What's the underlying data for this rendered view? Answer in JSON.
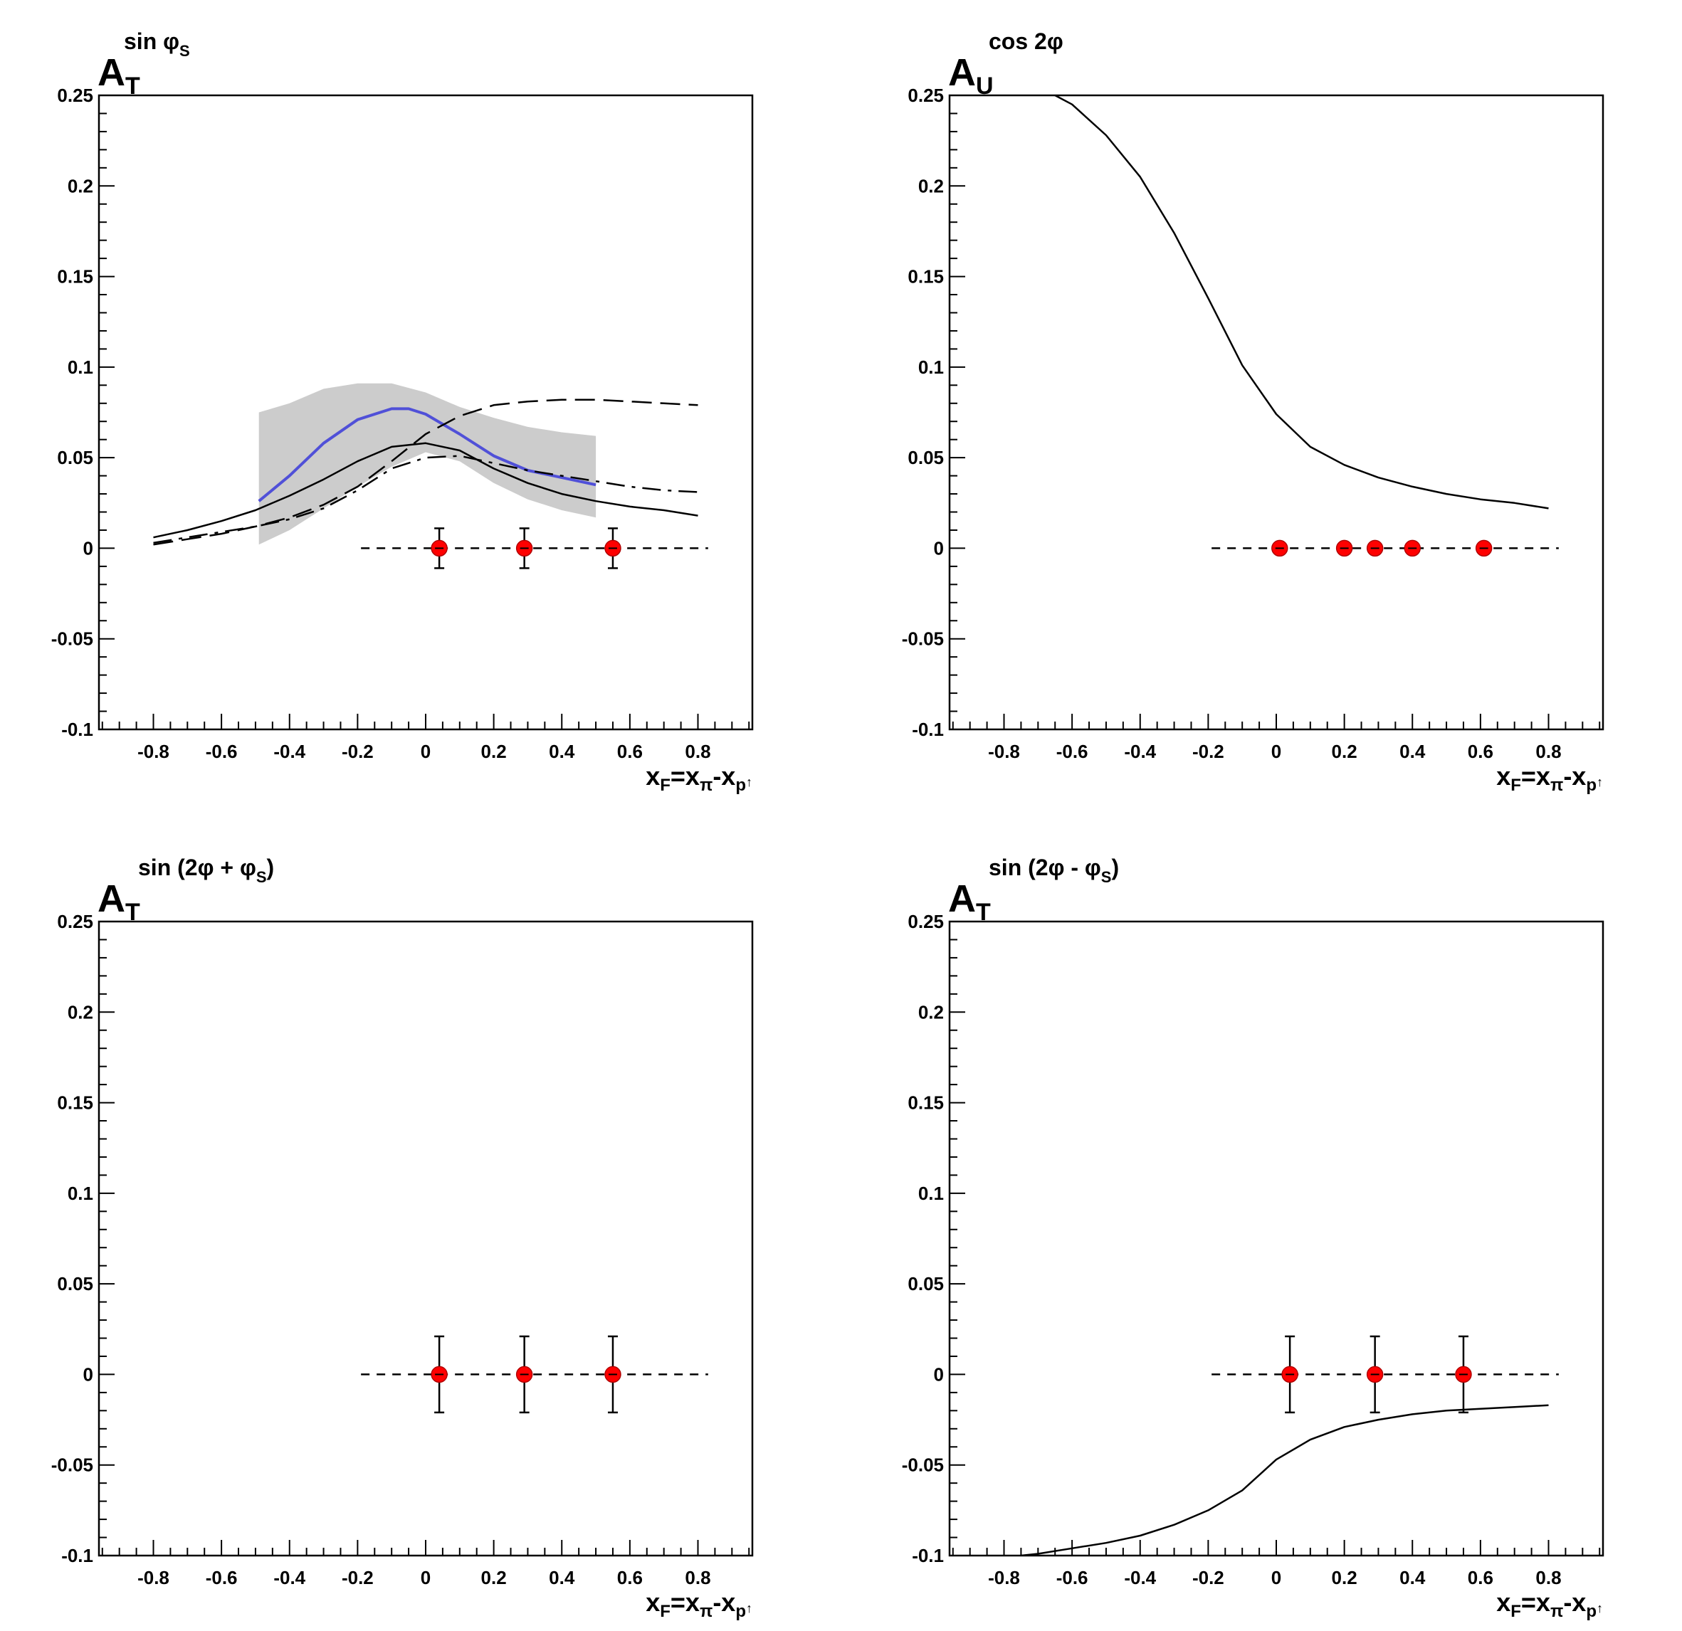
{
  "chart_data": [
    {
      "type": "line",
      "title": "A_T^{sin φ_S}",
      "title_parts": {
        "main": "A",
        "sub": "T",
        "sup": "sin φ",
        "sup_sub": "S",
        "sup_tail": ""
      },
      "xlabel": "x_F=x_π-x_p↑",
      "xlim": [
        -0.96,
        0.96
      ],
      "ylim": [
        -0.1,
        0.25
      ],
      "xticks": [
        "-0.8",
        "-0.6",
        "-0.4",
        "-0.2",
        "0",
        "0.2",
        "0.4",
        "0.6",
        "0.8"
      ],
      "yticks": [
        "-0.1",
        "-0.05",
        "0",
        "0.05",
        "0.1",
        "0.15",
        "0.2",
        "0.25"
      ],
      "band": {
        "x": [
          -0.49,
          -0.4,
          -0.3,
          -0.2,
          -0.1,
          0.0,
          0.1,
          0.2,
          0.3,
          0.4,
          0.5
        ],
        "upper": [
          0.075,
          0.08,
          0.088,
          0.091,
          0.091,
          0.086,
          0.078,
          0.072,
          0.067,
          0.064,
          0.062
        ],
        "lower": [
          0.002,
          0.01,
          0.022,
          0.034,
          0.045,
          0.053,
          0.048,
          0.036,
          0.027,
          0.021,
          0.017
        ],
        "color": "#cccccc"
      },
      "series": [
        {
          "style": "solid",
          "color": "#5050d8",
          "width": 4,
          "x": [
            -0.49,
            -0.4,
            -0.3,
            -0.2,
            -0.1,
            -0.05,
            0.0,
            0.1,
            0.2,
            0.3,
            0.4,
            0.5
          ],
          "y": [
            0.026,
            0.04,
            0.058,
            0.071,
            0.077,
            0.077,
            0.074,
            0.063,
            0.051,
            0.043,
            0.039,
            0.035
          ]
        },
        {
          "style": "solid",
          "color": "#000000",
          "width": 2.5,
          "x": [
            -0.8,
            -0.7,
            -0.6,
            -0.5,
            -0.4,
            -0.3,
            -0.2,
            -0.1,
            0.0,
            0.1,
            0.2,
            0.3,
            0.4,
            0.5,
            0.6,
            0.7,
            0.8
          ],
          "y": [
            0.006,
            0.01,
            0.015,
            0.021,
            0.029,
            0.038,
            0.048,
            0.056,
            0.058,
            0.054,
            0.044,
            0.036,
            0.03,
            0.026,
            0.023,
            0.021,
            0.018
          ]
        },
        {
          "style": "longdash",
          "color": "#000000",
          "width": 2.5,
          "x": [
            -0.8,
            -0.7,
            -0.6,
            -0.5,
            -0.4,
            -0.3,
            -0.2,
            -0.1,
            0.0,
            0.1,
            0.2,
            0.3,
            0.4,
            0.5,
            0.6,
            0.7,
            0.8
          ],
          "y": [
            0.002,
            0.005,
            0.008,
            0.012,
            0.017,
            0.024,
            0.034,
            0.048,
            0.063,
            0.073,
            0.079,
            0.081,
            0.082,
            0.082,
            0.081,
            0.08,
            0.079
          ]
        },
        {
          "style": "dashdot",
          "color": "#000000",
          "width": 2.5,
          "x": [
            -0.8,
            -0.7,
            -0.6,
            -0.5,
            -0.4,
            -0.3,
            -0.2,
            -0.1,
            0.0,
            0.1,
            0.2,
            0.3,
            0.4,
            0.5,
            0.6,
            0.7,
            0.8
          ],
          "y": [
            0.003,
            0.006,
            0.009,
            0.012,
            0.016,
            0.022,
            0.032,
            0.044,
            0.05,
            0.051,
            0.047,
            0.043,
            0.04,
            0.037,
            0.034,
            0.032,
            0.031
          ]
        }
      ],
      "reference_line": {
        "y": 0,
        "x": [
          -0.19,
          0.83
        ]
      },
      "points": {
        "x": [
          0.04,
          0.29,
          0.55
        ],
        "y": [
          0,
          0,
          0
        ],
        "err": [
          0.011,
          0.011,
          0.011
        ],
        "color": "#ff0000"
      }
    },
    {
      "type": "line",
      "title": "A_U^{cos 2φ}",
      "title_parts": {
        "main": "A",
        "sub": "U",
        "sup": "cos 2φ",
        "sup_sub": "",
        "sup_tail": ""
      },
      "xlabel": "x_F=x_π-x_p↑",
      "xlim": [
        -0.96,
        0.96
      ],
      "ylim": [
        -0.1,
        0.25
      ],
      "xticks": [
        "-0.8",
        "-0.6",
        "-0.4",
        "-0.2",
        "0",
        "0.2",
        "0.4",
        "0.6",
        "0.8"
      ],
      "yticks": [
        "-0.1",
        "-0.05",
        "0",
        "0.05",
        "0.1",
        "0.15",
        "0.2",
        "0.25"
      ],
      "series": [
        {
          "style": "solid",
          "color": "#000000",
          "width": 2.5,
          "x": [
            -0.65,
            -0.6,
            -0.5,
            -0.4,
            -0.3,
            -0.2,
            -0.1,
            0.0,
            0.1,
            0.2,
            0.3,
            0.4,
            0.5,
            0.6,
            0.7,
            0.8
          ],
          "y": [
            0.25,
            0.245,
            0.228,
            0.205,
            0.174,
            0.138,
            0.101,
            0.074,
            0.056,
            0.046,
            0.039,
            0.034,
            0.03,
            0.027,
            0.025,
            0.022
          ]
        }
      ],
      "reference_line": {
        "y": 0,
        "x": [
          -0.19,
          0.83
        ]
      },
      "points": {
        "x": [
          0.01,
          0.2,
          0.29,
          0.4,
          0.61
        ],
        "y": [
          0,
          0,
          0,
          0,
          0
        ],
        "err": [
          0,
          0,
          0,
          0,
          0
        ],
        "color": "#ff0000"
      }
    },
    {
      "type": "scatter",
      "title": "A_T^{sin (2φ + φ_S)}",
      "title_parts": {
        "main": "A",
        "sub": "T",
        "sup": "sin (2φ + φ",
        "sup_sub": "S",
        "sup_tail": ")"
      },
      "xlabel": "x_F=x_π-x_p↑",
      "xlim": [
        -0.96,
        0.96
      ],
      "ylim": [
        -0.1,
        0.25
      ],
      "xticks": [
        "-0.8",
        "-0.6",
        "-0.4",
        "-0.2",
        "0",
        "0.2",
        "0.4",
        "0.6",
        "0.8"
      ],
      "yticks": [
        "-0.1",
        "-0.05",
        "0",
        "0.05",
        "0.1",
        "0.15",
        "0.2",
        "0.25"
      ],
      "series": [],
      "reference_line": {
        "y": 0,
        "x": [
          -0.19,
          0.83
        ]
      },
      "points": {
        "x": [
          0.04,
          0.29,
          0.55
        ],
        "y": [
          0,
          0,
          0
        ],
        "err": [
          0.021,
          0.021,
          0.021
        ],
        "color": "#ff0000"
      }
    },
    {
      "type": "line",
      "title": "A_T^{sin (2φ - φ_S)}",
      "title_parts": {
        "main": "A",
        "sub": "T",
        "sup": "sin (2φ - φ",
        "sup_sub": "S",
        "sup_tail": ")"
      },
      "xlabel": "x_F=x_π-x_p↑",
      "xlim": [
        -0.96,
        0.96
      ],
      "ylim": [
        -0.1,
        0.25
      ],
      "xticks": [
        "-0.8",
        "-0.6",
        "-0.4",
        "-0.2",
        "0",
        "0.2",
        "0.4",
        "0.6",
        "0.8"
      ],
      "yticks": [
        "-0.1",
        "-0.05",
        "0",
        "0.05",
        "0.1",
        "0.15",
        "0.2",
        "0.25"
      ],
      "series": [
        {
          "style": "solid",
          "color": "#000000",
          "width": 2.5,
          "x": [
            -0.75,
            -0.7,
            -0.6,
            -0.5,
            -0.4,
            -0.3,
            -0.2,
            -0.1,
            0.0,
            0.1,
            0.2,
            0.3,
            0.4,
            0.5,
            0.6,
            0.7,
            0.8
          ],
          "y": [
            -0.1,
            -0.099,
            -0.096,
            -0.093,
            -0.089,
            -0.083,
            -0.075,
            -0.064,
            -0.047,
            -0.036,
            -0.029,
            -0.025,
            -0.022,
            -0.02,
            -0.019,
            -0.018,
            -0.017
          ]
        }
      ],
      "reference_line": {
        "y": 0,
        "x": [
          -0.19,
          0.83
        ]
      },
      "points": {
        "x": [
          0.04,
          0.29,
          0.55
        ],
        "y": [
          0,
          0,
          0
        ],
        "err": [
          0.021,
          0.021,
          0.021
        ],
        "color": "#ff0000"
      }
    }
  ]
}
